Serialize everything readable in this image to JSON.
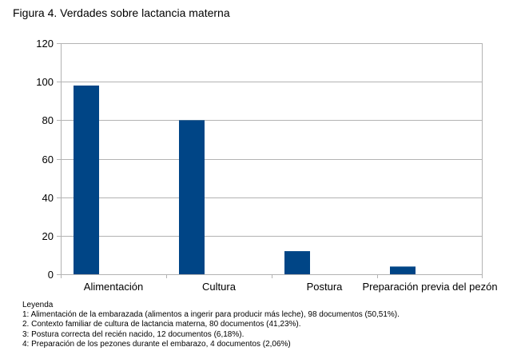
{
  "figure_title": "Figura 4. Verdades sobre lactancia materna",
  "chart_data": {
    "type": "bar",
    "categories": [
      "Alimentación",
      "Cultura",
      "Postura",
      "Preparación previa del pezón"
    ],
    "values": [
      98,
      80,
      12,
      4
    ],
    "ylim": [
      0,
      120
    ],
    "yticks": [
      0,
      20,
      40,
      60,
      80,
      100,
      120
    ],
    "grid": true,
    "bar_color": "#004586",
    "grid_color": "#b3b3b3",
    "xlabel": "",
    "ylabel": ""
  },
  "legend": {
    "heading": "Leyenda",
    "items": [
      "1: Alimentación de la embarazada (alimentos a ingerir para producir más leche), 98 documentos (50,51%).",
      "2. Contexto familiar de cultura de lactancia materna, 80 documentos (41,23%).",
      "3: Postura correcta del recién nacido, 12 documentos (6,18%).",
      "4: Preparación de los pezones durante el embarazo, 4 documentos (2,06%)"
    ]
  }
}
